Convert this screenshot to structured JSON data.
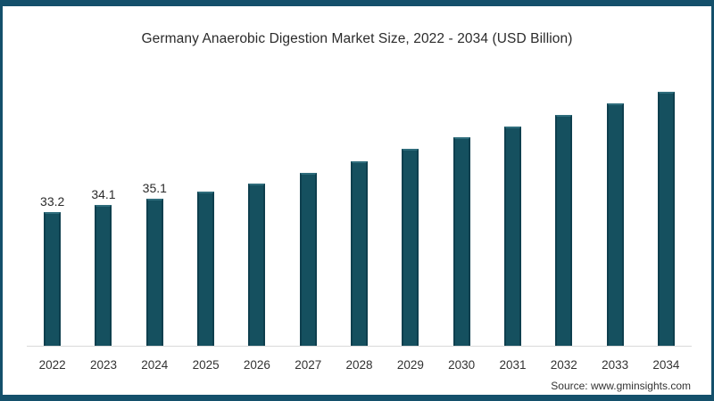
{
  "title": "Germany Anaerobic Digestion Market Size, 2022 - 2034 (USD Billion)",
  "source": "Source: www.gminsights.com",
  "colors": {
    "frame": "#14506b",
    "bar": "#15505f",
    "bar_edge": "#0e3f4e",
    "bar_top": "#2f6d7c",
    "axis_line": "#d9d9d9",
    "text": "#2b2b2b"
  },
  "chart_data": {
    "type": "bar",
    "title": "Germany Anaerobic Digestion Market Size, 2022 - 2034 (USD Billion)",
    "xlabel": "",
    "ylabel": "",
    "categories": [
      "2022",
      "2023",
      "2024",
      "2025",
      "2026",
      "2027",
      "2028",
      "2029",
      "2030",
      "2031",
      "2032",
      "2033",
      "2034"
    ],
    "values": [
      33.2,
      34.1,
      35.1,
      36.1,
      37.2,
      38.8,
      40.4,
      42.2,
      43.9,
      45.4,
      47.1,
      48.7,
      50.3
    ],
    "data_labels": [
      "33.2",
      "34.1",
      "35.1",
      "",
      "",
      "",
      "",
      "",
      "",
      "",
      "",
      "",
      ""
    ],
    "unit": "USD Billion",
    "ylim": [
      14,
      51
    ],
    "grid": false,
    "legend": false,
    "bar_color": "#15505f"
  }
}
